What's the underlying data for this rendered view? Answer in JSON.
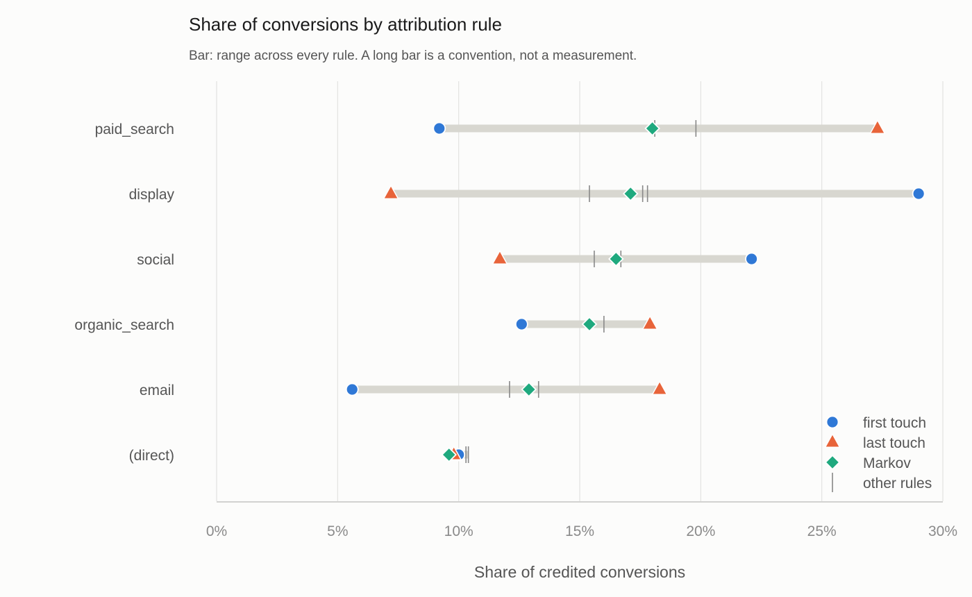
{
  "chart_data": {
    "type": "dot-range",
    "title": "Share of conversions by attribution rule",
    "subtitle": "Bar: range across every rule. A long bar is a convention, not a measurement.",
    "xlabel": "Share of credited conversions",
    "ylabel": "",
    "xlim": [
      0,
      30
    ],
    "x_ticks": [
      0,
      5,
      10,
      15,
      20,
      25,
      30
    ],
    "x_tick_labels": [
      "0%",
      "5%",
      "10%",
      "15%",
      "20%",
      "25%",
      "30%"
    ],
    "grid": "vertical",
    "legend_position": "bottom-right",
    "categories": [
      "paid_search",
      "display",
      "social",
      "organic_search",
      "email",
      "(direct)"
    ],
    "series": [
      {
        "name": "first touch",
        "marker": "circle",
        "color": "#2f78d6",
        "values": [
          9.2,
          29.0,
          22.1,
          12.6,
          5.6,
          10.0
        ]
      },
      {
        "name": "last touch",
        "marker": "triangle",
        "color": "#e8643a",
        "values": [
          27.3,
          7.2,
          11.7,
          17.9,
          18.3,
          9.8
        ]
      },
      {
        "name": "Markov",
        "marker": "diamond",
        "color": "#1fa97e",
        "values": [
          18.0,
          17.1,
          16.5,
          15.4,
          12.9,
          9.6
        ]
      }
    ],
    "other_rules": {
      "name": "other rules",
      "marker": "tick",
      "color": "#888888",
      "values": [
        [
          18.1,
          19.8
        ],
        [
          15.4,
          17.6,
          17.8
        ],
        [
          15.6,
          16.7
        ],
        [
          16.0
        ],
        [
          12.1,
          13.3
        ],
        [
          10.3,
          10.4
        ]
      ]
    },
    "range_bar_color": "#d8d7d0"
  }
}
